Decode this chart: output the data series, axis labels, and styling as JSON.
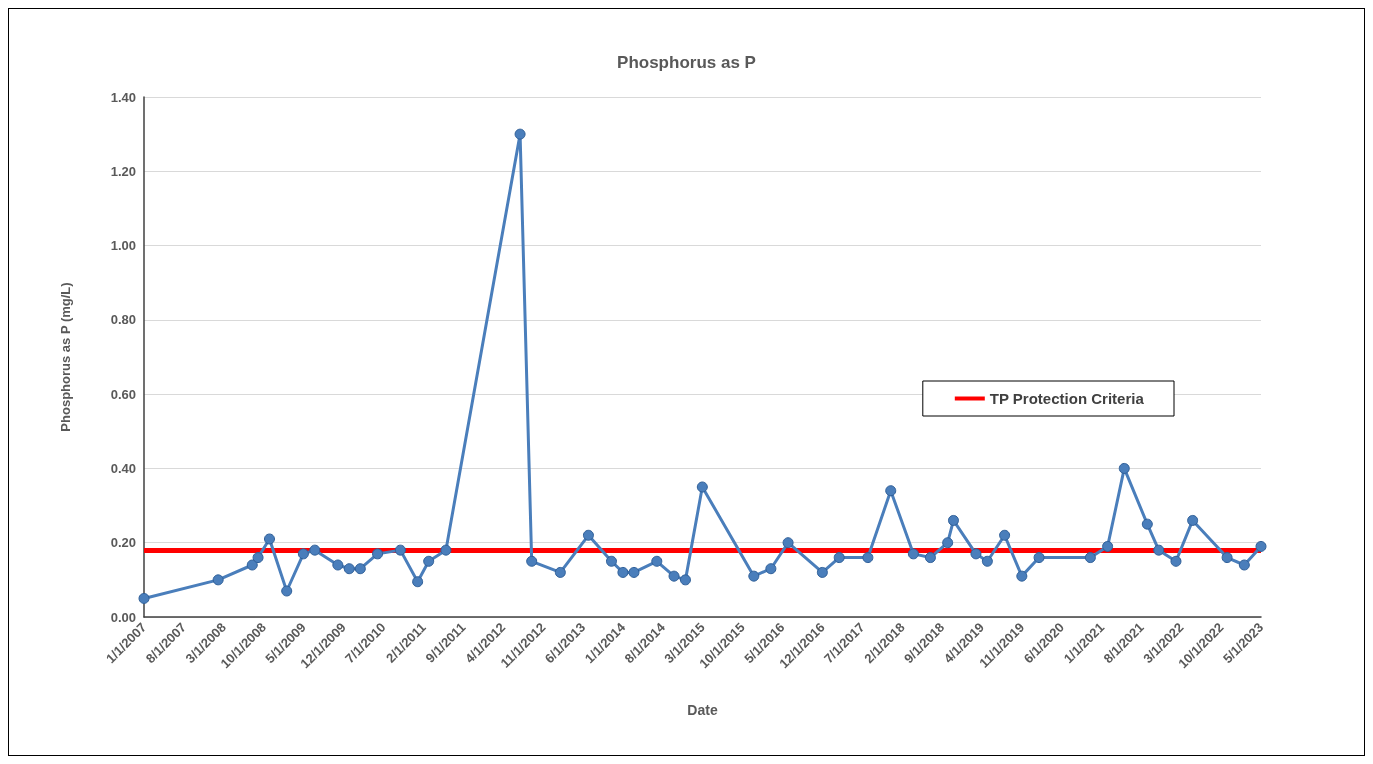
{
  "chart_data": {
    "type": "line",
    "title": "Phosphorus as P",
    "xlabel": "Date",
    "ylabel": "Phosphorus as P (mg/L)",
    "x": [
      "2007-01",
      "2008-02",
      "2008-08",
      "2008-09",
      "2008-11",
      "2009-02",
      "2009-05",
      "2009-07",
      "2009-11",
      "2010-01",
      "2010-03",
      "2010-06",
      "2010-10",
      "2011-01",
      "2011-03",
      "2011-06",
      "2012-07",
      "2012-09",
      "2013-02",
      "2013-07",
      "2013-11",
      "2014-01",
      "2014-03",
      "2014-07",
      "2014-10",
      "2014-12",
      "2015-03",
      "2015-12",
      "2016-03",
      "2016-06",
      "2016-12",
      "2017-03",
      "2017-08",
      "2017-12",
      "2018-04",
      "2018-07",
      "2018-10",
      "2018-11",
      "2019-03",
      "2019-05",
      "2019-08",
      "2019-11",
      "2020-02",
      "2020-11",
      "2021-02",
      "2021-05",
      "2021-09",
      "2021-11",
      "2022-02",
      "2022-05",
      "2022-11",
      "2023-02",
      "2023-05"
    ],
    "series": [
      {
        "color": "#4a7ebb",
        "values": [
          0.05,
          0.1,
          0.14,
          0.16,
          0.21,
          0.07,
          0.17,
          0.18,
          0.14,
          0.13,
          0.13,
          0.17,
          0.18,
          0.095,
          0.15,
          0.18,
          1.3,
          0.15,
          0.12,
          0.22,
          0.15,
          0.12,
          0.12,
          0.15,
          0.11,
          0.1,
          0.35,
          0.11,
          0.13,
          0.2,
          0.12,
          0.16,
          0.16,
          0.34,
          0.17,
          0.16,
          0.2,
          0.26,
          0.17,
          0.15,
          0.22,
          0.11,
          0.16,
          0.16,
          0.19,
          0.4,
          0.25,
          0.18,
          0.15,
          0.26,
          0.16,
          0.14,
          0.19
        ]
      }
    ],
    "ref_lines": [
      {
        "axis": "y",
        "value": 0.18,
        "label": "TP Protection Criteria",
        "color": "#ff0000"
      }
    ],
    "xlim": [
      "2007-01",
      "2023-05"
    ],
    "xticks": [
      {
        "value": "2007-01",
        "label": "1/1/2007"
      },
      {
        "value": "2007-08",
        "label": "8/1/2007"
      },
      {
        "value": "2008-03",
        "label": "3/1/2008"
      },
      {
        "value": "2008-10",
        "label": "10/1/2008"
      },
      {
        "value": "2009-05",
        "label": "5/1/2009"
      },
      {
        "value": "2009-12",
        "label": "12/1/2009"
      },
      {
        "value": "2010-07",
        "label": "7/1/2010"
      },
      {
        "value": "2011-02",
        "label": "2/1/2011"
      },
      {
        "value": "2011-09",
        "label": "9/1/2011"
      },
      {
        "value": "2012-04",
        "label": "4/1/2012"
      },
      {
        "value": "2012-11",
        "label": "11/1/2012"
      },
      {
        "value": "2013-06",
        "label": "6/1/2013"
      },
      {
        "value": "2014-01",
        "label": "1/1/2014"
      },
      {
        "value": "2014-08",
        "label": "8/1/2014"
      },
      {
        "value": "2015-03",
        "label": "3/1/2015"
      },
      {
        "value": "2015-10",
        "label": "10/1/2015"
      },
      {
        "value": "2016-05",
        "label": "5/1/2016"
      },
      {
        "value": "2016-12",
        "label": "12/1/2016"
      },
      {
        "value": "2017-07",
        "label": "7/1/2017"
      },
      {
        "value": "2018-02",
        "label": "2/1/2018"
      },
      {
        "value": "2018-09",
        "label": "9/1/2018"
      },
      {
        "value": "2019-04",
        "label": "4/1/2019"
      },
      {
        "value": "2019-11",
        "label": "11/1/2019"
      },
      {
        "value": "2020-06",
        "label": "6/1/2020"
      },
      {
        "value": "2021-01",
        "label": "1/1/2021"
      },
      {
        "value": "2021-08",
        "label": "8/1/2021"
      },
      {
        "value": "2022-03",
        "label": "3/1/2022"
      },
      {
        "value": "2022-10",
        "label": "10/1/2022"
      },
      {
        "value": "2023-05",
        "label": "5/1/2023"
      }
    ],
    "ylim": [
      0,
      1.4
    ],
    "yticks": [
      {
        "value": 0,
        "label": "0.00"
      },
      {
        "value": 0.2,
        "label": "0.20"
      },
      {
        "value": 0.4,
        "label": "0.40"
      },
      {
        "value": 0.6,
        "label": "0.60"
      },
      {
        "value": 0.8,
        "label": "0.80"
      },
      {
        "value": 1.0,
        "label": "1.00"
      },
      {
        "value": 1.2,
        "label": "1.20"
      },
      {
        "value": 1.4,
        "label": "1.40"
      }
    ],
    "grid": "y",
    "legend": "right",
    "marker": "circle",
    "line_style": "solid"
  }
}
